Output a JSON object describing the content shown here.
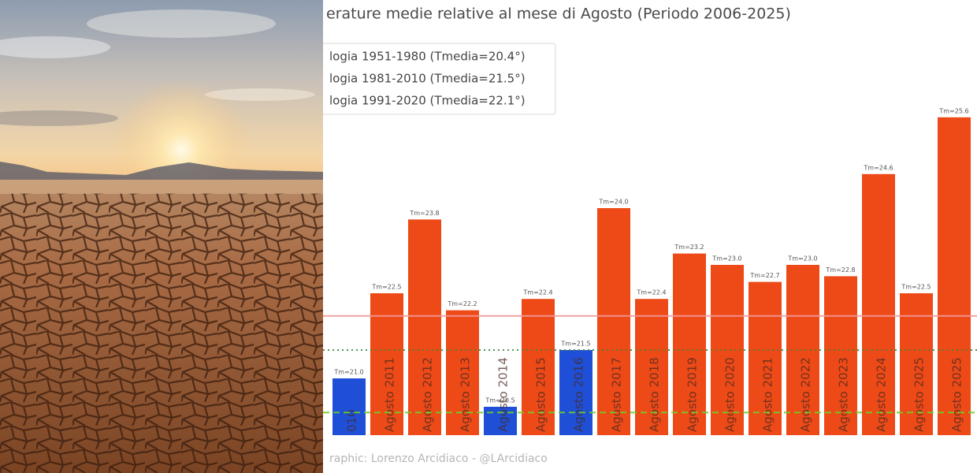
{
  "chart_data": {
    "type": "bar",
    "title": "erature medie relative al mese di Agosto (Periodo 2006-2025)",
    "footer": "raphic: Lorenzo Arcidiaco - @LArcidiaco",
    "categories": [
      "010",
      "Agosto 2011",
      "Agosto 2012",
      "Agosto 2013",
      "Agosto 2014",
      "Agosto 2015",
      "Agosto 2016",
      "Agosto 2017",
      "Agosto 2018",
      "Agosto 2019",
      "Agosto 2020",
      "Agosto 2021",
      "Agosto 2022",
      "Agosto 2023",
      "Agosto 2024",
      "Agosto 2025",
      "Agosto 2025"
    ],
    "values": [
      21.0,
      22.5,
      23.8,
      22.2,
      20.5,
      22.4,
      21.5,
      24.0,
      22.4,
      23.2,
      23.0,
      22.7,
      23.0,
      22.8,
      24.6,
      22.5,
      25.6
    ],
    "value_labels": [
      "Tm=21.0",
      "Tm=22.5",
      "Tm=23.8",
      "Tm=22.2",
      "Tm=20.5",
      "Tm=22.4",
      "Tm=21.5",
      "Tm=24.0",
      "Tm=22.4",
      "Tm=23.2",
      "Tm=23.0",
      "Tm=22.7",
      "Tm=23.0",
      "Tm=22.8",
      "Tm=24.6",
      "Tm=22.5",
      "Tm=25.6"
    ],
    "colors": [
      "#1f4fd6",
      "#ee4a17",
      "#ee4a17",
      "#ee4a17",
      "#1f4fd6",
      "#ee4a17",
      "#1f4fd6",
      "#ee4a17",
      "#ee4a17",
      "#ee4a17",
      "#ee4a17",
      "#ee4a17",
      "#ee4a17",
      "#ee4a17",
      "#ee4a17",
      "#ee4a17",
      "#ee4a17"
    ],
    "reference_lines": [
      {
        "label": "logia 1951-1980 (Tmedia=20.4°)",
        "value": 20.4,
        "color": "#6ccf2a",
        "style": "dashed"
      },
      {
        "label": "logia 1981-2010 (Tmedia=21.5°)",
        "value": 21.5,
        "color": "#3f8a3a",
        "style": "dotted"
      },
      {
        "label": "logia 1991-2020 (Tmedia=22.1°)",
        "value": 22.1,
        "color": "#f29a9a",
        "style": "solid"
      }
    ],
    "ylim": [
      20,
      26
    ]
  }
}
